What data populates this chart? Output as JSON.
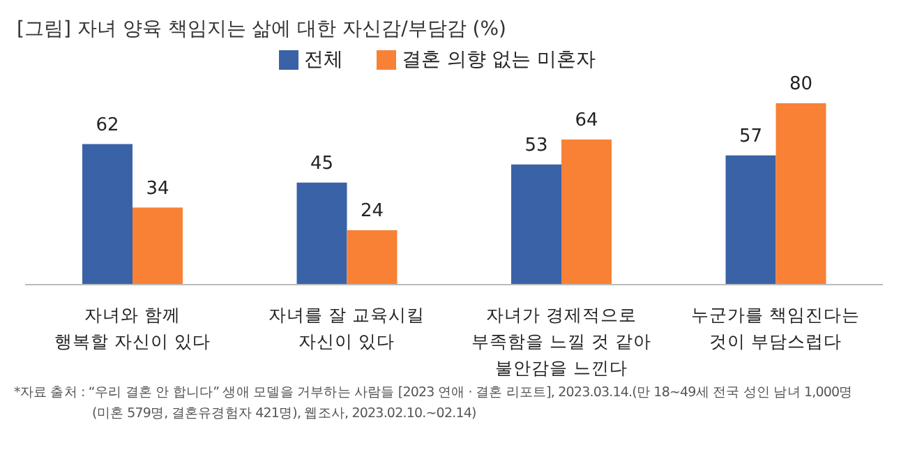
{
  "chart_data": {
    "type": "bar",
    "title": "[그림] 자녀 양육 책임지는 삶에 대한 자신감/부담감 (%)",
    "categories": [
      "자녀와 함께\n행복할 자신이 있다",
      "자녀를 잘 교육시킬\n자신이 있다",
      "자녀가 경제적으로\n부족함을 느낄 것 같아\n불안감을 느낀다",
      "누군가를 책임진다는\n것이 부담스럽다"
    ],
    "series": [
      {
        "name": "전체",
        "color": "#3a62a7",
        "values": [
          62,
          45,
          53,
          57
        ]
      },
      {
        "name": "결혼 의향 없는 미혼자",
        "color": "#f98136",
        "values": [
          34,
          24,
          64,
          80
        ]
      }
    ],
    "data_labels": true,
    "legend": "top",
    "grid": false,
    "annotations": [
      "*자료 출처 : “우리 결혼 안 합니다” 생애 모델을 거부하는 사람들 [2023 연애 · 결혼 리포트], 2023.03.14.(만 18~49세 전국 성인 남녀 1,000명",
      "(미혼 579명, 결혼유경험자 421명), 웹조사, 2023.02.10.~02.14)"
    ]
  }
}
